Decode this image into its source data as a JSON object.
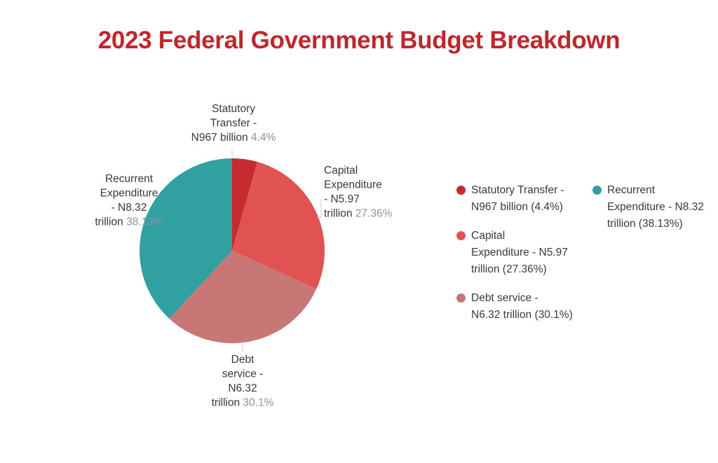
{
  "title": "2023 Federal Government Budget Breakdown",
  "chart_data": {
    "type": "pie",
    "title": "2023 Federal Government Budget Breakdown",
    "start_angle_deg": 0,
    "slices": [
      {
        "name": "Statutory Transfer - N967 billion",
        "value": 4.4,
        "color": "#c42c2f",
        "label_lines": [
          "Statutory",
          "Transfer -",
          "N967 billion"
        ],
        "pct_text": "4.4%",
        "legend_text": "Statutory Transfer -\nN967 billion (4.4%)"
      },
      {
        "name": "Capital Expenditure - N5.97 trillion",
        "value": 27.36,
        "color": "#e15352",
        "label_lines": [
          "Capital",
          "Expenditure",
          "- N5.97",
          "trillion"
        ],
        "pct_text": "27.36%",
        "legend_text": "Capital\nExpenditure - N5.97\ntrillion (27.36%)"
      },
      {
        "name": "Debt service - N6.32 trillion",
        "value": 30.1,
        "color": "#c77876",
        "label_lines": [
          "Debt",
          "service -",
          "N6.32",
          "trillion"
        ],
        "pct_text": "30.1%",
        "legend_text": "Debt service -\nN6.32 trillion (30.1%)"
      },
      {
        "name": "Recurrent Expenditure - N8.32 trillion",
        "value": 38.13,
        "color": "#31a0a1",
        "label_lines": [
          "Recurrent",
          "Expenditure",
          "- N8.32",
          "trillion"
        ],
        "pct_text": "38.13%",
        "legend_text": "Recurrent\nExpenditure - N8.32\ntrillion (38.13%)"
      }
    ],
    "legend_position": "right"
  }
}
